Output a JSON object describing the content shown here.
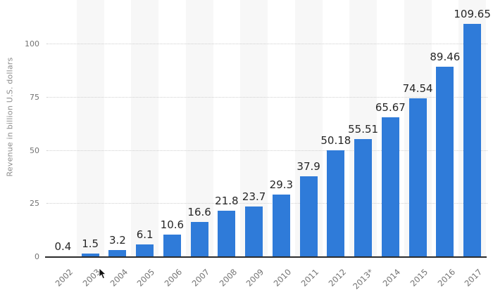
{
  "chart_data": {
    "type": "bar",
    "title": "",
    "xlabel": "",
    "ylabel": "Revenue in billion U.S. dollars",
    "categories": [
      "2002",
      "2003",
      "2004",
      "2005",
      "2006",
      "2007",
      "2008",
      "2009",
      "2010",
      "2011",
      "2012",
      "2013*",
      "2014",
      "2015",
      "2016",
      "2017"
    ],
    "values": [
      0.4,
      1.5,
      3.2,
      6.1,
      10.6,
      16.6,
      21.8,
      23.7,
      29.3,
      37.9,
      50.18,
      55.51,
      65.67,
      74.54,
      89.46,
      109.65
    ],
    "value_labels": [
      "0.4",
      "1.5",
      "3.2",
      "6.1",
      "10.6",
      "16.6",
      "21.8",
      "23.7",
      "29.3",
      "37.9",
      "50.18",
      "55.51",
      "65.67",
      "74.54",
      "89.46",
      "109.65"
    ],
    "yticks": [
      0,
      25,
      50,
      75,
      100
    ],
    "ylim": [
      0,
      120
    ],
    "grid": "horizontal-dotted",
    "legend": "none",
    "plot_bg_alternating_stripes": true
  },
  "colors": {
    "bar": "#2f7bd9",
    "stripe": "#f7f7f7",
    "gridline": "#cfcfcf",
    "axis_line": "#2b2b2b",
    "tick_text": "#737373",
    "value_label_text": "#262626",
    "y_title_text": "#8c8c8c",
    "background": "#ffffff"
  }
}
